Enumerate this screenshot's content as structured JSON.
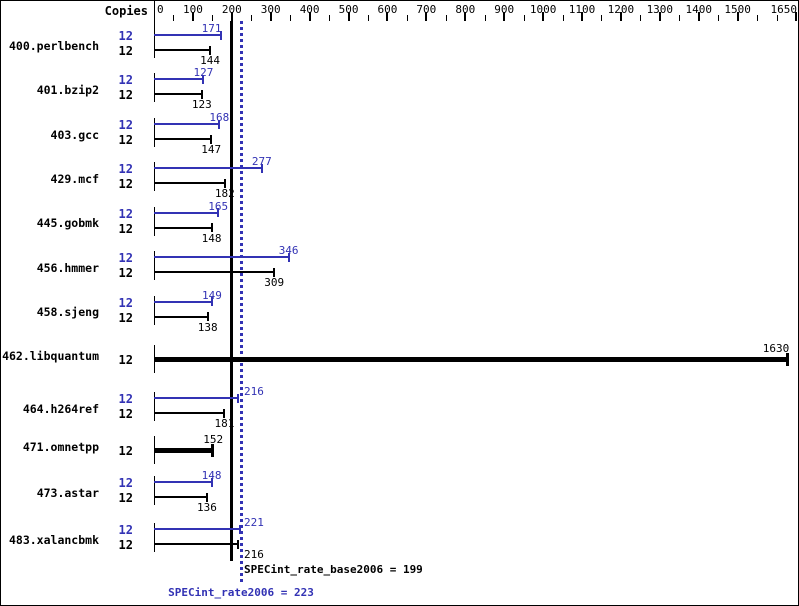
{
  "chart_data": {
    "type": "bar",
    "orientation": "horizontal",
    "copies_header": "Copies",
    "axis": {
      "min": 0,
      "max": 1650,
      "major_tick_labels": [
        0,
        100,
        200,
        300,
        400,
        500,
        600,
        700,
        800,
        900,
        1000,
        1100,
        1200,
        1300,
        1400,
        1500,
        1650
      ],
      "minor_tick_step": 50,
      "position": "top"
    },
    "series_colors": {
      "peak": "#3232b4",
      "base": "#000000"
    },
    "benchmarks": [
      {
        "name": "400.perlbench",
        "copies": 12,
        "peak": 171,
        "base": 144
      },
      {
        "name": "401.bzip2",
        "copies": 12,
        "peak": 127,
        "base": 123
      },
      {
        "name": "403.gcc",
        "copies": 12,
        "peak": 168,
        "base": 147
      },
      {
        "name": "429.mcf",
        "copies": 12,
        "peak": 277,
        "base": 182
      },
      {
        "name": "445.gobmk",
        "copies": 12,
        "peak": 165,
        "base": 148
      },
      {
        "name": "456.hmmer",
        "copies": 12,
        "peak": 346,
        "base": 309
      },
      {
        "name": "458.sjeng",
        "copies": 12,
        "peak": 149,
        "base": 138
      },
      {
        "name": "462.libquantum",
        "copies": 12,
        "base": 1630,
        "base_equals_peak": true
      },
      {
        "name": "464.h264ref",
        "copies": 12,
        "peak": 216,
        "base": 181
      },
      {
        "name": "471.omnetpp",
        "copies": 12,
        "base": 152,
        "base_equals_peak": true
      },
      {
        "name": "473.astar",
        "copies": 12,
        "peak": 148,
        "base": 136
      },
      {
        "name": "483.xalancbmk",
        "copies": 12,
        "peak": 221,
        "base": 216
      }
    ],
    "reference_lines": [
      {
        "label": "SPECint_rate_base2006 = 199",
        "value": 199,
        "style": "solid",
        "color": "#000000"
      },
      {
        "label": "SPECint_rate2006 = 223",
        "value": 223,
        "style": "dotted",
        "color": "#3232b4"
      }
    ]
  }
}
